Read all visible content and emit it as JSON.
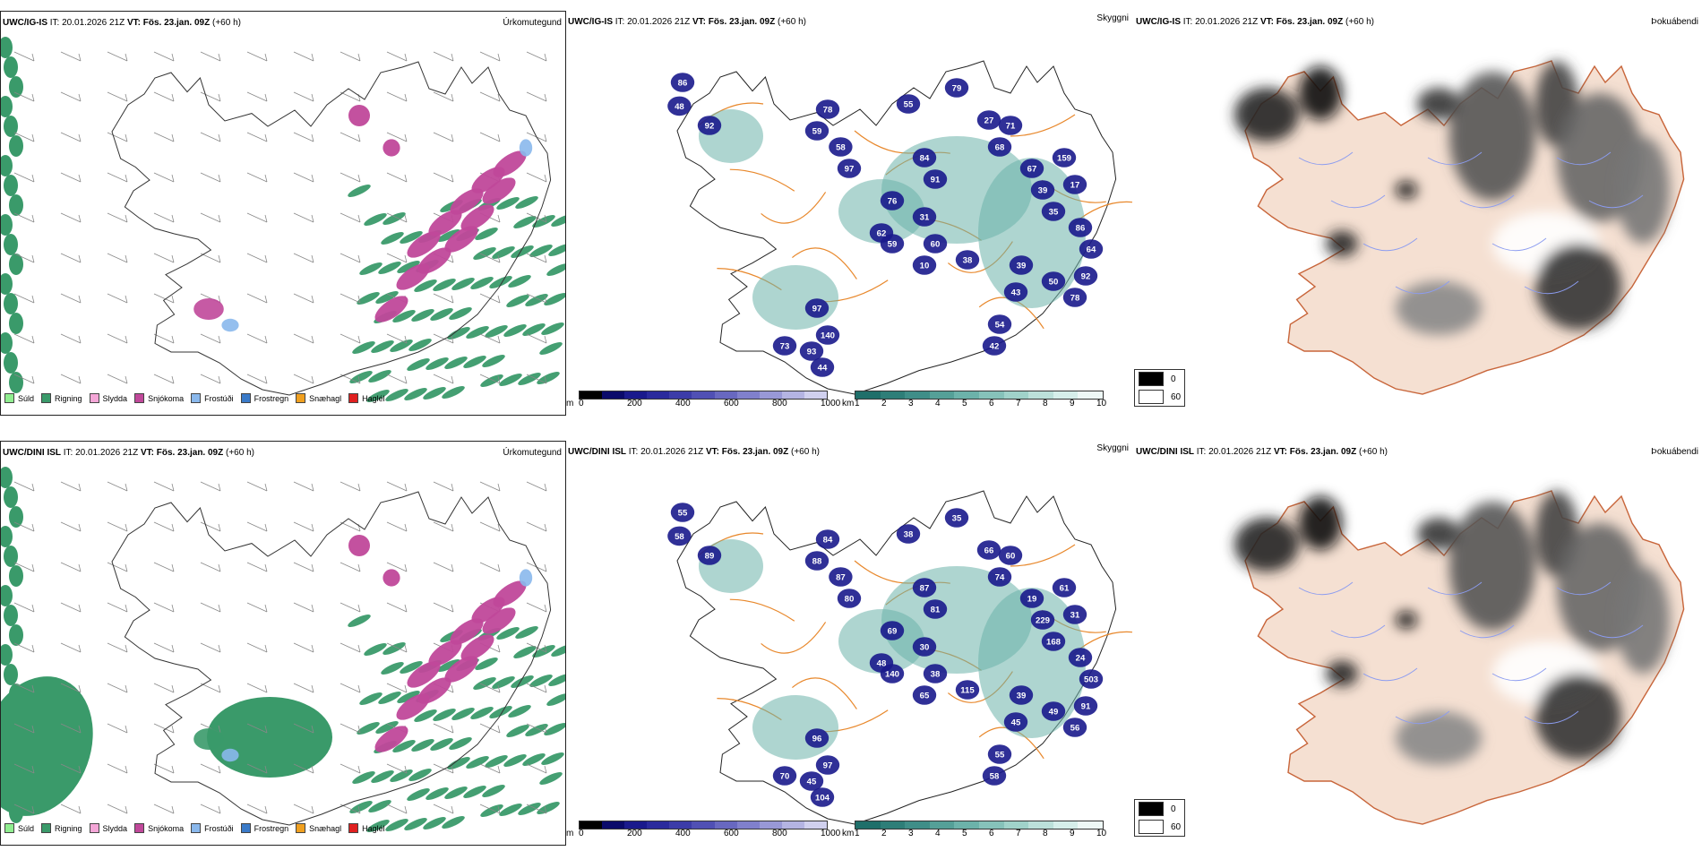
{
  "rows": [
    {
      "model": "UWC/IG-IS",
      "it_label": "IT:",
      "it": "20.01.2026 21Z",
      "vt_label": "VT:",
      "vt": "Fös. 23.jan. 09Z",
      "lead": "(+60 h)",
      "cloud_labels": [
        "86",
        "48",
        "92",
        "59",
        "78",
        "58",
        "97",
        "84",
        "91",
        "76",
        "55",
        "79",
        "27",
        "71",
        "68",
        "67",
        "39",
        "35",
        "159",
        "17",
        "86",
        "64",
        "92",
        "78",
        "50",
        "39",
        "43",
        "54",
        "42",
        "60",
        "38",
        "10",
        "59",
        "97",
        "140",
        "93",
        "44",
        "73",
        "62",
        "31"
      ]
    },
    {
      "model": "UWC/DINI ISL",
      "it_label": "IT:",
      "it": "20.01.2026 21Z",
      "vt_label": "VT:",
      "vt": "Fös. 23.jan. 09Z",
      "lead": "(+60 h)",
      "cloud_labels": [
        "55",
        "58",
        "89",
        "88",
        "84",
        "87",
        "80",
        "87",
        "81",
        "69",
        "38",
        "35",
        "66",
        "60",
        "74",
        "19",
        "229",
        "168",
        "61",
        "31",
        "24",
        "503",
        "91",
        "56",
        "49",
        "39",
        "45",
        "55",
        "58",
        "38",
        "115",
        "65",
        "140",
        "96",
        "97",
        "45",
        "104",
        "70",
        "48",
        "30"
      ]
    }
  ],
  "panel_titles": {
    "precip": "Úrkomutegund",
    "visibility": "Skyggni",
    "fog": "Þokuábendi"
  },
  "precip_legend": [
    {
      "label": "Súld",
      "color": "#90ee90"
    },
    {
      "label": "Rigning",
      "color": "#3a9a6a"
    },
    {
      "label": "Slydda",
      "color": "#f4a6d7"
    },
    {
      "label": "Snjókoma",
      "color": "#c0489a"
    },
    {
      "label": "Frostúði",
      "color": "#8ab8ec"
    },
    {
      "label": "Frostregn",
      "color": "#3a7ac8"
    },
    {
      "label": "Snæhagl",
      "color": "#f0a020"
    },
    {
      "label": "Haglél",
      "color": "#e02020"
    }
  ],
  "cloudbase_bar": {
    "unit": "m",
    "ticks": [
      "0",
      "200",
      "400",
      "600",
      "800",
      "1000"
    ],
    "colors": [
      "#000000",
      "#0a0a6a",
      "#1a1a8c",
      "#2a2a9c",
      "#3c3ca8",
      "#5050b4",
      "#6868c0",
      "#8080cc",
      "#9898d6",
      "#b4b4e2",
      "#d0d0ee"
    ]
  },
  "visibility_bar": {
    "unit": "km",
    "ticks": [
      "1",
      "2",
      "3",
      "4",
      "5",
      "6",
      "7",
      "8",
      "9",
      "10"
    ],
    "colors": [
      "#1f6f6a",
      "#2e7e78",
      "#3f8e88",
      "#55a098",
      "#6cb2aa",
      "#86c2ba",
      "#a0d2ca",
      "#bce0da",
      "#d6eeea",
      "#eef8f6"
    ]
  },
  "fog_legend": {
    "items": [
      {
        "label": "0",
        "color": "#000000"
      },
      {
        "label": "60",
        "color": "#ffffff"
      }
    ]
  }
}
